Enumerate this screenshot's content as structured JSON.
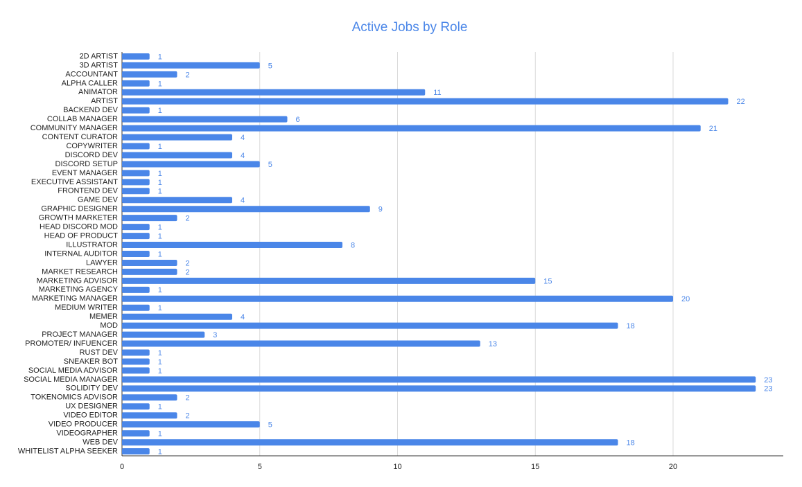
{
  "chart_data": {
    "type": "bar",
    "orientation": "horizontal",
    "title": "Active Jobs by Role",
    "categories": [
      "2D ARTIST",
      "3D ARTIST",
      "ACCOUNTANT",
      "ALPHA CALLER",
      "ANIMATOR",
      "ARTIST",
      "BACKEND DEV",
      "COLLAB MANAGER",
      "COMMUNITY MANAGER",
      "CONTENT CURATOR",
      "COPYWRITER",
      "DISCORD DEV",
      "DISCORD SETUP",
      "EVENT MANAGER",
      "EXECUTIVE ASSISTANT",
      "FRONTEND DEV",
      "GAME DEV",
      "GRAPHIC DESIGNER",
      "GROWTH MARKETER",
      "HEAD DISCORD MOD",
      "HEAD OF PRODUCT",
      "ILLUSTRATOR",
      "INTERNAL AUDITOR",
      "LAWYER",
      "MARKET RESEARCH",
      "MARKETING ADVISOR",
      "MARKETING AGENCY",
      "MARKETING MANAGER",
      "MEDIUM WRITER",
      "MEMER",
      "MOD",
      "PROJECT MANAGER",
      "PROMOTER/ INFUENCER",
      "RUST DEV",
      "SNEAKER BOT",
      "SOCIAL MEDIA ADVISOR",
      "SOCIAL MEDIA MANAGER",
      "SOLIDITY DEV",
      "TOKENOMICS ADVISOR",
      "UX DESIGNER",
      "VIDEO EDITOR",
      "VIDEO PRODUCER",
      "VIDEOGRAPHER",
      "WEB DEV",
      "WHITELIST ALPHA SEEKER"
    ],
    "values": [
      1,
      5,
      2,
      1,
      11,
      22,
      1,
      6,
      21,
      4,
      1,
      4,
      5,
      1,
      1,
      1,
      4,
      9,
      2,
      1,
      1,
      8,
      1,
      2,
      2,
      15,
      1,
      20,
      1,
      4,
      18,
      3,
      13,
      1,
      1,
      1,
      23,
      23,
      2,
      1,
      2,
      5,
      1,
      18,
      1
    ],
    "color": "#4a86e8",
    "xlim": [
      0,
      24
    ],
    "xticks": [
      0,
      5,
      10,
      15,
      20
    ],
    "grid": true
  }
}
